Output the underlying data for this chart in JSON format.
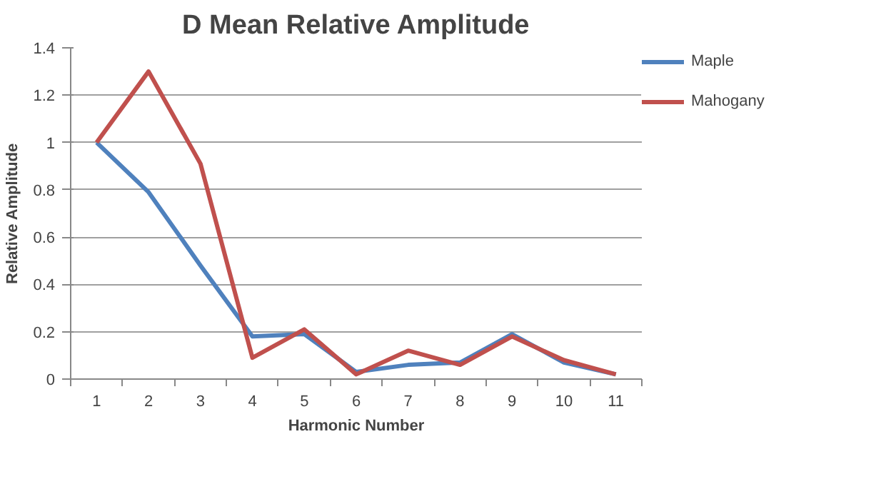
{
  "chart_data": {
    "type": "line",
    "title": "D Mean Relative Amplitude",
    "xlabel": "Harmonic Number",
    "ylabel": "Relative Amplitude",
    "categories": [
      "1",
      "2",
      "3",
      "4",
      "5",
      "6",
      "7",
      "8",
      "9",
      "10",
      "11"
    ],
    "series": [
      {
        "name": "Maple",
        "color": "#4f81bd",
        "values": [
          1,
          0.79,
          0.48,
          0.18,
          0.19,
          0.03,
          0.06,
          0.07,
          0.19,
          0.07,
          0.02
        ]
      },
      {
        "name": "Mahogany",
        "color": "#c0504d",
        "values": [
          1,
          1.3,
          0.91,
          0.09,
          0.21,
          0.02,
          0.12,
          0.06,
          0.18,
          0.08,
          0.02
        ]
      }
    ],
    "ylim": [
      0,
      1.4
    ],
    "yticks": [
      0,
      {
        "value": 0.2,
        "label": "0.2"
      },
      {
        "value": 0.4,
        "label": "0.4"
      },
      {
        "value": 0.6,
        "label": "0.6"
      },
      {
        "value": 0.8,
        "label": "0.8"
      },
      1,
      {
        "value": 1.2,
        "label": "1.2"
      },
      {
        "value": 1.4,
        "label": "1.4"
      }
    ],
    "grid": "y",
    "legend": "right",
    "marker": "none",
    "line_style": "solid"
  }
}
